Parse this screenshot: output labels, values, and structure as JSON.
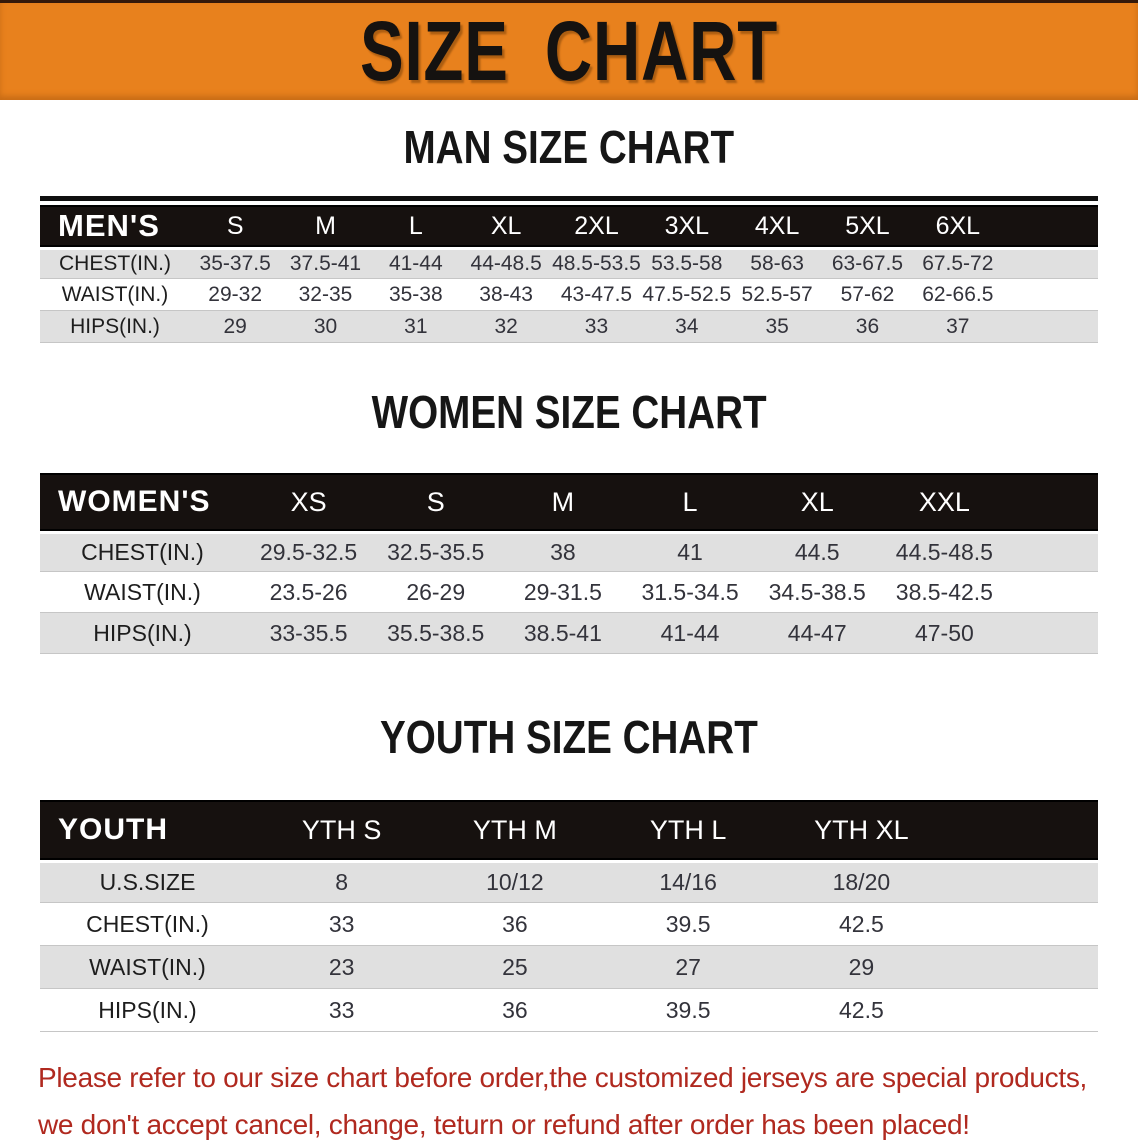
{
  "banner": {
    "title": "SIZE CHART"
  },
  "headings": {
    "men": "MAN SIZE CHART",
    "women": "WOMEN SIZE CHART",
    "youth": "YOUTH SIZE CHART"
  },
  "tables": {
    "men": {
      "title": "MEN'S",
      "columns": [
        "S",
        "M",
        "L",
        "XL",
        "2XL",
        "3XL",
        "4XL",
        "5XL",
        "6XL"
      ],
      "rows": [
        {
          "label": "CHEST(IN.)",
          "values": [
            "35-37.5",
            "37.5-41",
            "41-44",
            "44-48.5",
            "48.5-53.5",
            "53.5-58",
            "58-63",
            "63-67.5",
            "67.5-72"
          ]
        },
        {
          "label": "WAIST(IN.)",
          "values": [
            "29-32",
            "32-35",
            "35-38",
            "38-43",
            "43-47.5",
            "47.5-52.5",
            "52.5-57",
            "57-62",
            "62-66.5"
          ]
        },
        {
          "label": "HIPS(IN.)",
          "values": [
            "29",
            "30",
            "31",
            "32",
            "33",
            "34",
            "35",
            "36",
            "37"
          ]
        }
      ]
    },
    "women": {
      "title": "WOMEN'S",
      "columns": [
        "XS",
        "S",
        "M",
        "L",
        "XL",
        "XXL"
      ],
      "rows": [
        {
          "label": "CHEST(IN.)",
          "values": [
            "29.5-32.5",
            "32.5-35.5",
            "38",
            "41",
            "44.5",
            "44.5-48.5"
          ]
        },
        {
          "label": "WAIST(IN.)",
          "values": [
            "23.5-26",
            "26-29",
            "29-31.5",
            "31.5-34.5",
            "34.5-38.5",
            "38.5-42.5"
          ]
        },
        {
          "label": "HIPS(IN.)",
          "values": [
            "33-35.5",
            "35.5-38.5",
            "38.5-41",
            "41-44",
            "44-47",
            "47-50"
          ]
        }
      ]
    },
    "youth": {
      "title": "YOUTH",
      "columns": [
        "YTH S",
        "YTH M",
        "YTH L",
        "YTH XL"
      ],
      "rows": [
        {
          "label": "U.S.SIZE",
          "values": [
            "8",
            "10/12",
            "14/16",
            "18/20"
          ]
        },
        {
          "label": "CHEST(IN.)",
          "values": [
            "33",
            "36",
            "39.5",
            "42.5"
          ]
        },
        {
          "label": "WAIST(IN.)",
          "values": [
            "23",
            "25",
            "27",
            "29"
          ]
        },
        {
          "label": "HIPS(IN.)",
          "values": [
            "33",
            "36",
            "39.5",
            "42.5"
          ]
        }
      ]
    }
  },
  "disclaimer": {
    "line1": "Please refer to our size chart before order,the customized jerseys are special products,",
    "line2": "we don't accept cancel, change, teturn or refund after order has been placed!"
  },
  "colors": {
    "banner_orange": "#e8811d",
    "header_black": "#16110f",
    "row_gray": "#e0e0e0",
    "disclaimer_red": "#b0291f"
  }
}
